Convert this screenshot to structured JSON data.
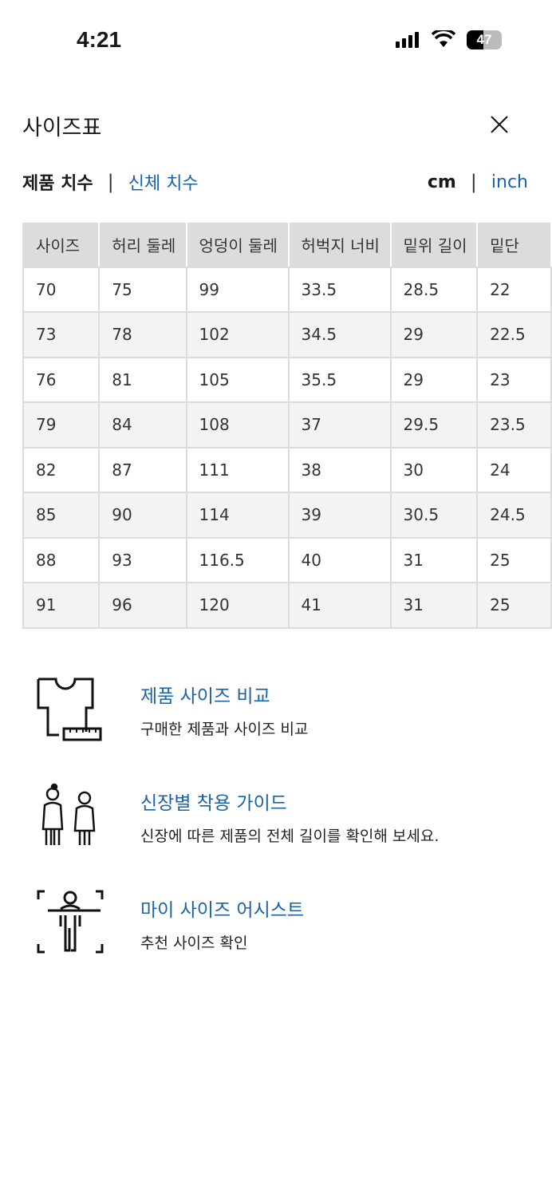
{
  "status_bar": {
    "time": "4:21",
    "battery": "47",
    "battery_level": 47
  },
  "header": {
    "title": "사이즈표",
    "close_icon": "close-icon"
  },
  "tabs": {
    "product": "제품 치수",
    "body": "신체 치수",
    "separator": "|"
  },
  "units": {
    "cm": "cm",
    "inch": "inch",
    "separator": "|"
  },
  "table": {
    "headers": [
      "사이즈",
      "허리 둘레",
      "엉덩이 둘레",
      "허벅지 너비",
      "밑위 길이",
      "밑단"
    ],
    "rows": [
      [
        "70",
        "75",
        "99",
        "33.5",
        "28.5",
        "22"
      ],
      [
        "73",
        "78",
        "102",
        "34.5",
        "29",
        "22.5"
      ],
      [
        "76",
        "81",
        "105",
        "35.5",
        "29",
        "23"
      ],
      [
        "79",
        "84",
        "108",
        "37",
        "29.5",
        "23.5"
      ],
      [
        "82",
        "87",
        "111",
        "38",
        "30",
        "24"
      ],
      [
        "85",
        "90",
        "114",
        "39",
        "30.5",
        "24.5"
      ],
      [
        "88",
        "93",
        "116.5",
        "40",
        "31",
        "25"
      ],
      [
        "91",
        "96",
        "120",
        "41",
        "31",
        "25"
      ]
    ]
  },
  "links": [
    {
      "title": "제품 사이즈 비교",
      "desc": "구매한 제품과 사이즈 비교",
      "icon": "tshirt-ruler-icon"
    },
    {
      "title": "신장별 착용 가이드",
      "desc": "신장에 따른 제품의 전체 길이를 확인해 보세요.",
      "icon": "people-height-icon"
    },
    {
      "title": "마이 사이즈 어시스트",
      "desc": "추천 사이즈 확인",
      "icon": "body-scan-icon"
    }
  ],
  "colors": {
    "accent": "#1a63a8",
    "header_bg": "#dcdcdc",
    "stripe": "#f3f3f3"
  }
}
